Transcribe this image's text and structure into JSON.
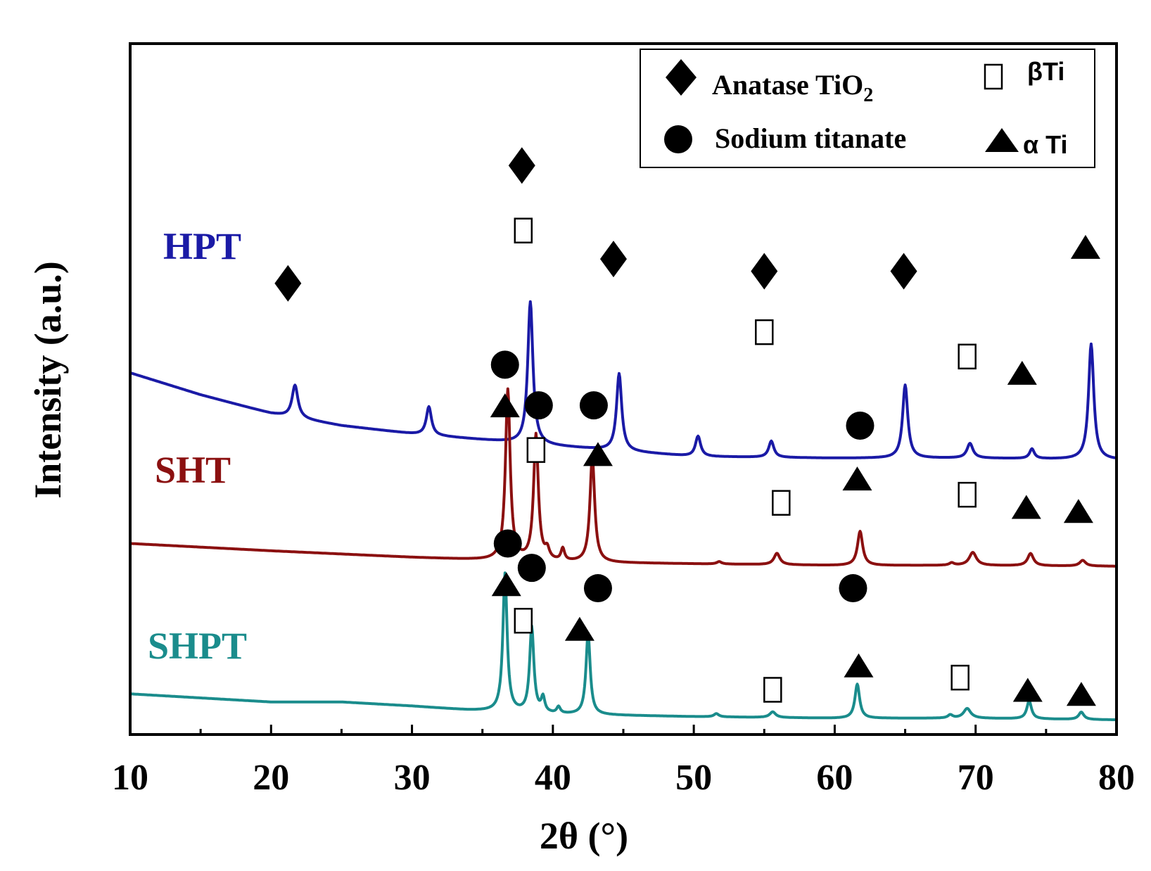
{
  "chart_data": {
    "type": "line",
    "xlabel": "2θ (°)",
    "ylabel": "Intensity (a.u.)",
    "xlim": [
      10,
      80
    ],
    "xticks": [
      10,
      20,
      30,
      40,
      50,
      60,
      70,
      80
    ],
    "grid": false,
    "legend_position": "top-right",
    "legend": [
      {
        "marker": "diamond",
        "label": "Anatase TiO",
        "sub": "2"
      },
      {
        "marker": "open-square",
        "label": "βTi"
      },
      {
        "marker": "circle",
        "label": "Sodium titanate"
      },
      {
        "marker": "triangle",
        "label": "α Ti"
      }
    ],
    "series": [
      {
        "name": "HPT",
        "color": "#1a1aa6",
        "background": [
          [
            10,
            4.45
          ],
          [
            15,
            4.18
          ],
          [
            20,
            3.95
          ],
          [
            25,
            3.8
          ],
          [
            30,
            3.7
          ],
          [
            40,
            3.55
          ],
          [
            50,
            3.42
          ],
          [
            60,
            3.4
          ],
          [
            70,
            3.4
          ],
          [
            80,
            3.38
          ]
        ],
        "peaks": [
          {
            "x": 21.7,
            "h": 0.4,
            "w": 0.25
          },
          {
            "x": 31.2,
            "h": 0.35,
            "w": 0.22
          },
          {
            "x": 38.4,
            "h": 1.75,
            "w": 0.22
          },
          {
            "x": 44.7,
            "h": 0.95,
            "w": 0.22
          },
          {
            "x": 50.3,
            "h": 0.25,
            "w": 0.22
          },
          {
            "x": 55.5,
            "h": 0.2,
            "w": 0.22
          },
          {
            "x": 65.0,
            "h": 0.9,
            "w": 0.22
          },
          {
            "x": 69.6,
            "h": 0.18,
            "w": 0.25
          },
          {
            "x": 74.0,
            "h": 0.12,
            "w": 0.2
          },
          {
            "x": 78.2,
            "h": 1.42,
            "w": 0.22
          }
        ],
        "markers": [
          {
            "type": "diamond",
            "x": 21.2,
            "y": 5.55
          },
          {
            "type": "diamond",
            "x": 37.8,
            "y": 7.0
          },
          {
            "type": "square",
            "x": 37.9,
            "y": 6.2
          },
          {
            "type": "diamond",
            "x": 44.3,
            "y": 5.85
          },
          {
            "type": "diamond",
            "x": 55.0,
            "y": 5.7
          },
          {
            "type": "square",
            "x": 55.0,
            "y": 4.95
          },
          {
            "type": "diamond",
            "x": 64.9,
            "y": 5.7
          },
          {
            "type": "square",
            "x": 69.4,
            "y": 4.65
          },
          {
            "type": "triangle",
            "x": 73.3,
            "y": 4.45
          },
          {
            "type": "triangle",
            "x": 77.8,
            "y": 6.0
          }
        ]
      },
      {
        "name": "SHT",
        "color": "#8b1010",
        "background": [
          [
            10,
            2.35
          ],
          [
            20,
            2.26
          ],
          [
            30,
            2.18
          ],
          [
            36,
            2.14
          ],
          [
            40,
            2.12
          ],
          [
            50,
            2.1
          ],
          [
            60,
            2.08
          ],
          [
            70,
            2.08
          ],
          [
            80,
            2.07
          ]
        ],
        "peaks": [
          {
            "x": 36.8,
            "h": 2.1,
            "w": 0.2
          },
          {
            "x": 38.8,
            "h": 1.55,
            "w": 0.2
          },
          {
            "x": 39.6,
            "h": 0.12,
            "w": 0.18
          },
          {
            "x": 40.7,
            "h": 0.15,
            "w": 0.15
          },
          {
            "x": 42.8,
            "h": 1.3,
            "w": 0.2
          },
          {
            "x": 51.8,
            "h": 0.03,
            "w": 0.2
          },
          {
            "x": 55.9,
            "h": 0.14,
            "w": 0.25
          },
          {
            "x": 61.8,
            "h": 0.42,
            "w": 0.22
          },
          {
            "x": 68.3,
            "h": 0.03,
            "w": 0.2
          },
          {
            "x": 69.8,
            "h": 0.16,
            "w": 0.3
          },
          {
            "x": 73.9,
            "h": 0.15,
            "w": 0.25
          },
          {
            "x": 77.6,
            "h": 0.07,
            "w": 0.25
          }
        ],
        "markers": [
          {
            "type": "circle",
            "x": 36.6,
            "y": 4.55
          },
          {
            "type": "triangle",
            "x": 36.6,
            "y": 4.05
          },
          {
            "type": "circle",
            "x": 39.0,
            "y": 4.05
          },
          {
            "type": "circle",
            "x": 42.9,
            "y": 4.05
          },
          {
            "type": "square",
            "x": 38.8,
            "y": 3.5
          },
          {
            "type": "triangle",
            "x": 43.2,
            "y": 3.45
          },
          {
            "type": "circle",
            "x": 61.8,
            "y": 3.8
          },
          {
            "type": "triangle",
            "x": 61.6,
            "y": 3.15
          },
          {
            "type": "square",
            "x": 56.2,
            "y": 2.85
          },
          {
            "type": "square",
            "x": 69.4,
            "y": 2.95
          },
          {
            "type": "triangle",
            "x": 73.6,
            "y": 2.8
          },
          {
            "type": "triangle",
            "x": 77.3,
            "y": 2.75
          }
        ]
      },
      {
        "name": "SHPT",
        "color": "#1a8c8c",
        "background": [
          [
            10,
            0.5
          ],
          [
            20,
            0.4
          ],
          [
            25,
            0.4
          ],
          [
            30,
            0.35
          ],
          [
            34,
            0.3
          ],
          [
            40,
            0.25
          ],
          [
            50,
            0.22
          ],
          [
            60,
            0.2
          ],
          [
            70,
            0.2
          ],
          [
            80,
            0.18
          ]
        ],
        "peaks": [
          {
            "x": 36.6,
            "h": 1.7,
            "w": 0.18
          },
          {
            "x": 38.5,
            "h": 1.05,
            "w": 0.18
          },
          {
            "x": 39.3,
            "h": 0.18,
            "w": 0.15
          },
          {
            "x": 40.4,
            "h": 0.08,
            "w": 0.15
          },
          {
            "x": 42.5,
            "h": 1.0,
            "w": 0.18
          },
          {
            "x": 51.6,
            "h": 0.04,
            "w": 0.2
          },
          {
            "x": 55.6,
            "h": 0.07,
            "w": 0.25
          },
          {
            "x": 61.6,
            "h": 0.42,
            "w": 0.2
          },
          {
            "x": 68.2,
            "h": 0.04,
            "w": 0.2
          },
          {
            "x": 69.4,
            "h": 0.12,
            "w": 0.3
          },
          {
            "x": 73.8,
            "h": 0.22,
            "w": 0.2
          },
          {
            "x": 77.5,
            "h": 0.09,
            "w": 0.22
          }
        ],
        "markers": [
          {
            "type": "circle",
            "x": 36.8,
            "y": 2.35
          },
          {
            "type": "circle",
            "x": 38.5,
            "y": 2.05
          },
          {
            "type": "triangle",
            "x": 36.7,
            "y": 1.85
          },
          {
            "type": "circle",
            "x": 43.2,
            "y": 1.8
          },
          {
            "type": "triangle",
            "x": 41.9,
            "y": 1.3
          },
          {
            "type": "square",
            "x": 37.9,
            "y": 1.4
          },
          {
            "type": "circle",
            "x": 61.3,
            "y": 1.8
          },
          {
            "type": "triangle",
            "x": 61.7,
            "y": 0.85
          },
          {
            "type": "square",
            "x": 55.6,
            "y": 0.55
          },
          {
            "type": "square",
            "x": 68.9,
            "y": 0.7
          },
          {
            "type": "triangle",
            "x": 73.7,
            "y": 0.55
          },
          {
            "type": "triangle",
            "x": 77.5,
            "y": 0.5
          }
        ]
      }
    ]
  }
}
